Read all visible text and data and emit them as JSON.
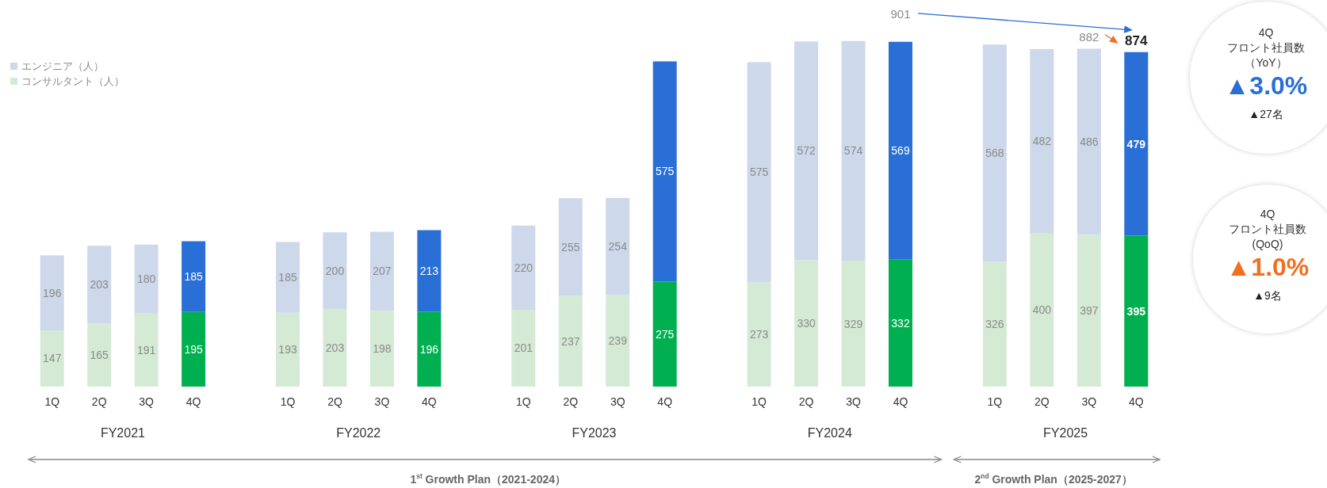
{
  "chart_data": {
    "type": "bar",
    "stacked": true,
    "data_labels": true,
    "legend": "top left",
    "categories": [
      "1Q",
      "2Q",
      "3Q",
      "4Q",
      null,
      "1Q",
      "2Q",
      "3Q",
      "4Q",
      null,
      "1Q",
      "2Q",
      "3Q",
      "4Q",
      null,
      "1Q",
      "2Q",
      "3Q",
      "4Q",
      null,
      "1Q",
      "2Q",
      "3Q",
      "4Q"
    ],
    "series": [
      {
        "name": "コンサルタント（人）",
        "color": "#d5ead5",
        "values": [
          147,
          165,
          191,
          195,
          null,
          193,
          203,
          198,
          196,
          null,
          201,
          237,
          239,
          275,
          null,
          273,
          330,
          329,
          332,
          null,
          326,
          400,
          397,
          395
        ],
        "colors": [
          "#d5ead5",
          "#d5ead5",
          "#d5ead5",
          "#00b050",
          null,
          "#d5ead5",
          "#d5ead5",
          "#d5ead5",
          "#00b050",
          null,
          "#d5ead5",
          "#d5ead5",
          "#d5ead5",
          "#00b050",
          null,
          "#d5ead5",
          "#d5ead5",
          "#d5ead5",
          "#00b050",
          null,
          "#d5ead5",
          "#d5ead5",
          "#d5ead5",
          "#00b050"
        ]
      },
      {
        "name": "エンジニア（人）",
        "color": "#cdd8ea",
        "values": [
          196,
          203,
          180,
          185,
          null,
          185,
          200,
          207,
          213,
          null,
          220,
          255,
          254,
          575,
          null,
          575,
          572,
          574,
          569,
          null,
          568,
          482,
          486,
          479
        ],
        "colors": [
          "#cdd8ea",
          "#cdd8ea",
          "#cdd8ea",
          "#2a6fd6",
          null,
          "#cdd8ea",
          "#cdd8ea",
          "#cdd8ea",
          "#2a6fd6",
          null,
          "#cdd8ea",
          "#cdd8ea",
          "#cdd8ea",
          "#2a6fd6",
          null,
          "#cdd8ea",
          "#cdd8ea",
          "#cdd8ea",
          "#2a6fd6",
          null,
          "#cdd8ea",
          "#cdd8ea",
          "#cdd8ea",
          "#2a6fd6"
        ]
      }
    ],
    "totals": [
      null,
      null,
      null,
      null,
      null,
      null,
      null,
      null,
      null,
      null,
      null,
      null,
      null,
      null,
      null,
      null,
      null,
      null,
      "901",
      null,
      null,
      null,
      "882",
      "874"
    ],
    "annotations": [
      "FY2021",
      "FY2022",
      "FY2023",
      "FY2024",
      "FY2025",
      "1$^{st}$ Growth Plan（2021-2024）",
      "2$^{nd}$ Growth Plan（2025-2027）",
      "4Q",
      "フロント社員数",
      "（YoY）",
      "▲3.0%",
      "▲27名",
      "4Q",
      "フロント社員数",
      "(QoQ)",
      "▲1.0%",
      "▲9名"
    ]
  }
}
